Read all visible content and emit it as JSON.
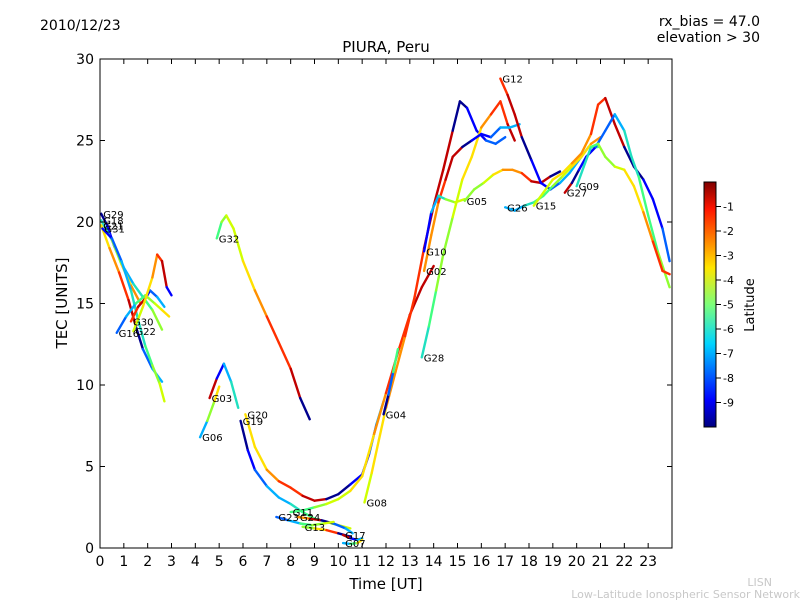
{
  "header": {
    "date": "2010/12/23",
    "rx_bias": "rx_bias = 47.0",
    "elevation": "elevation > 30"
  },
  "footer": {
    "line1": "LISN",
    "line2": "Low-Latitude Ionospheric Sensor Network"
  },
  "chart_data": {
    "type": "scatter",
    "title": "PIURA, Peru",
    "xlabel": "Time [UT]",
    "ylabel": "TEC [UNITS]",
    "xlim": [
      0,
      24
    ],
    "ylim": [
      0,
      30
    ],
    "xticks": [
      "0",
      "1",
      "2",
      "3",
      "4",
      "5",
      "6",
      "7",
      "8",
      "9",
      "10",
      "11",
      "12",
      "13",
      "14",
      "15",
      "16",
      "17",
      "18",
      "19",
      "20",
      "21",
      "22",
      "23"
    ],
    "yticks": [
      "0",
      "5",
      "10",
      "15",
      "20",
      "25",
      "30"
    ],
    "grid": false,
    "colorbar": {
      "label": "Latitude",
      "ticks": [
        "-1",
        "-2",
        "-3",
        "-4",
        "-5",
        "-6",
        "-7",
        "-8",
        "-9"
      ],
      "range": [
        -10,
        0
      ]
    },
    "series": [
      {
        "name": "G29",
        "points": [
          [
            0.05,
            20.5
          ],
          [
            0.3,
            19.8
          ],
          [
            0.6,
            18.5
          ],
          [
            1.0,
            17.2
          ],
          [
            1.4,
            16.2
          ],
          [
            1.8,
            15.4
          ],
          [
            2.2,
            14.6
          ],
          [
            2.6,
            13.4
          ]
        ]
      },
      {
        "name": "G18",
        "points": [
          [
            0.05,
            20.1
          ],
          [
            0.5,
            18.9
          ],
          [
            0.9,
            17.4
          ],
          [
            1.3,
            16.1
          ],
          [
            1.7,
            15.0
          ]
        ]
      },
      {
        "name": "G21",
        "points": [
          [
            0.05,
            19.8
          ],
          [
            0.4,
            18.4
          ],
          [
            0.8,
            16.9
          ],
          [
            1.2,
            15.2
          ],
          [
            1.5,
            13.6
          ],
          [
            1.8,
            12.2
          ],
          [
            2.2,
            11.0
          ],
          [
            2.6,
            10.2
          ]
        ]
      },
      {
        "name": "G31",
        "points": [
          [
            0.1,
            19.6
          ],
          [
            0.5,
            19.0
          ],
          [
            0.9,
            17.6
          ],
          [
            1.3,
            15.8
          ],
          [
            1.6,
            14.0
          ],
          [
            1.9,
            12.4
          ],
          [
            2.2,
            11.2
          ],
          [
            2.5,
            10.1
          ],
          [
            2.7,
            9.0
          ]
        ]
      },
      {
        "name": "G32",
        "points": [
          [
            4.9,
            19.0
          ],
          [
            5.1,
            20.0
          ],
          [
            5.3,
            20.4
          ],
          [
            5.6,
            19.6
          ],
          [
            6.0,
            17.6
          ],
          [
            6.5,
            15.8
          ],
          [
            7.0,
            14.2
          ],
          [
            7.5,
            12.6
          ],
          [
            8.0,
            11.0
          ],
          [
            8.4,
            9.2
          ],
          [
            8.8,
            7.9
          ]
        ]
      },
      {
        "name": "G30",
        "points": [
          [
            1.3,
            13.9
          ],
          [
            1.6,
            14.8
          ],
          [
            1.9,
            15.3
          ],
          [
            2.1,
            15.8
          ],
          [
            2.4,
            15.4
          ],
          [
            2.7,
            14.8
          ]
        ]
      },
      {
        "name": "G16",
        "points": [
          [
            0.7,
            13.2
          ],
          [
            1.1,
            14.2
          ],
          [
            1.5,
            15.0
          ],
          [
            1.9,
            15.5
          ],
          [
            2.3,
            15.0
          ],
          [
            2.6,
            14.6
          ],
          [
            2.9,
            14.2
          ]
        ]
      },
      {
        "name": "G22",
        "points": [
          [
            1.4,
            13.3
          ],
          [
            1.8,
            14.8
          ],
          [
            2.2,
            16.6
          ],
          [
            2.4,
            18.0
          ],
          [
            2.6,
            17.6
          ],
          [
            2.8,
            16.0
          ],
          [
            3.0,
            15.5
          ]
        ]
      },
      {
        "name": "G03",
        "points": [
          [
            4.6,
            9.2
          ],
          [
            4.9,
            10.4
          ],
          [
            5.2,
            11.3
          ],
          [
            5.5,
            10.2
          ],
          [
            5.8,
            8.6
          ]
        ]
      },
      {
        "name": "G06",
        "points": [
          [
            4.2,
            6.8
          ],
          [
            4.5,
            7.8
          ],
          [
            4.8,
            9.0
          ],
          [
            5.0,
            9.9
          ]
        ]
      },
      {
        "name": "G20",
        "points": [
          [
            6.1,
            8.2
          ],
          [
            6.5,
            6.2
          ],
          [
            7.0,
            4.8
          ],
          [
            7.5,
            4.1
          ],
          [
            8.0,
            3.7
          ],
          [
            8.5,
            3.2
          ],
          [
            9.0,
            2.9
          ],
          [
            9.5,
            3.0
          ],
          [
            10.0,
            3.3
          ],
          [
            10.5,
            3.9
          ],
          [
            11.0,
            4.5
          ],
          [
            11.3,
            5.8
          ],
          [
            11.6,
            7.6
          ],
          [
            11.9,
            9.0
          ]
        ]
      },
      {
        "name": "G19",
        "points": [
          [
            5.9,
            7.8
          ],
          [
            6.2,
            6.0
          ],
          [
            6.5,
            4.8
          ],
          [
            7.0,
            3.8
          ],
          [
            7.5,
            3.1
          ],
          [
            8.0,
            2.7
          ],
          [
            8.5,
            2.2
          ],
          [
            9.0,
            1.8
          ],
          [
            9.5,
            1.6
          ],
          [
            10.0,
            1.4
          ],
          [
            10.5,
            1.2
          ]
        ]
      },
      {
        "name": "G11",
        "points": [
          [
            8.0,
            2.2
          ],
          [
            8.5,
            2.3
          ],
          [
            9.0,
            2.5
          ],
          [
            9.5,
            2.7
          ],
          [
            10.0,
            3.0
          ],
          [
            10.5,
            3.5
          ],
          [
            11.0,
            4.4
          ],
          [
            11.5,
            7.0
          ],
          [
            12.0,
            9.5
          ],
          [
            12.5,
            12.0
          ],
          [
            13.0,
            14.3
          ],
          [
            13.5,
            16.0
          ],
          [
            14.0,
            17.3
          ]
        ]
      },
      {
        "name": "G24",
        "points": [
          [
            8.3,
            1.9
          ],
          [
            8.8,
            1.8
          ],
          [
            9.3,
            1.7
          ],
          [
            9.8,
            1.5
          ],
          [
            10.3,
            1.2
          ],
          [
            10.6,
            0.9
          ]
        ]
      },
      {
        "name": "G23",
        "points": [
          [
            7.4,
            1.9
          ],
          [
            7.9,
            1.7
          ],
          [
            8.4,
            1.5
          ],
          [
            8.9,
            1.4
          ],
          [
            9.4,
            1.5
          ],
          [
            9.8,
            1.6
          ]
        ]
      },
      {
        "name": "G13",
        "points": [
          [
            8.5,
            1.3
          ],
          [
            9.0,
            1.2
          ],
          [
            9.5,
            1.1
          ],
          [
            10.0,
            0.9
          ],
          [
            10.5,
            0.7
          ]
        ]
      },
      {
        "name": "G17",
        "points": [
          [
            10.2,
            0.8
          ],
          [
            10.5,
            0.6
          ],
          [
            10.8,
            0.5
          ],
          [
            11.0,
            0.6
          ]
        ]
      },
      {
        "name": "G07",
        "points": [
          [
            10.2,
            0.3
          ],
          [
            10.5,
            0.25
          ],
          [
            10.8,
            0.3
          ],
          [
            11.0,
            0.5
          ]
        ]
      },
      {
        "name": "G08",
        "points": [
          [
            11.1,
            2.8
          ],
          [
            11.4,
            4.6
          ],
          [
            11.7,
            6.6
          ],
          [
            12.0,
            8.6
          ],
          [
            12.4,
            10.8
          ],
          [
            12.8,
            13.0
          ],
          [
            13.2,
            15.4
          ],
          [
            13.6,
            18.4
          ],
          [
            14.0,
            21.0
          ],
          [
            14.4,
            23.2
          ],
          [
            14.8,
            25.6
          ],
          [
            15.1,
            27.4
          ],
          [
            15.4,
            27.0
          ],
          [
            15.8,
            25.6
          ],
          [
            16.2,
            25.0
          ],
          [
            16.6,
            24.8
          ],
          [
            17.0,
            25.2
          ]
        ]
      },
      {
        "name": "G04",
        "points": [
          [
            11.9,
            8.2
          ],
          [
            12.1,
            9.4
          ],
          [
            12.3,
            10.8
          ],
          [
            12.5,
            12.2
          ]
        ]
      },
      {
        "name": "G28",
        "points": [
          [
            13.5,
            11.7
          ],
          [
            13.8,
            13.6
          ],
          [
            14.1,
            15.8
          ],
          [
            14.4,
            18.0
          ],
          [
            14.8,
            20.3
          ],
          [
            15.2,
            22.6
          ],
          [
            15.6,
            24.0
          ],
          [
            16.0,
            25.8
          ],
          [
            16.4,
            26.6
          ],
          [
            16.8,
            27.4
          ],
          [
            17.1,
            26.0
          ],
          [
            17.4,
            25.0
          ]
        ]
      },
      {
        "name": "G02",
        "points": [
          [
            13.6,
            17.0
          ],
          [
            13.9,
            19.2
          ],
          [
            14.2,
            21.2
          ],
          [
            14.5,
            22.6
          ],
          [
            14.8,
            24.0
          ],
          [
            15.2,
            24.6
          ],
          [
            15.6,
            25.0
          ],
          [
            16.0,
            25.4
          ],
          [
            16.4,
            25.2
          ],
          [
            16.8,
            25.8
          ],
          [
            17.2,
            25.8
          ],
          [
            17.6,
            26.0
          ]
        ]
      },
      {
        "name": "G10",
        "points": [
          [
            13.6,
            18.2
          ],
          [
            13.9,
            20.6
          ],
          [
            14.2,
            21.6
          ],
          [
            14.5,
            21.4
          ],
          [
            14.9,
            21.2
          ],
          [
            15.3,
            21.4
          ]
        ]
      },
      {
        "name": "G05",
        "points": [
          [
            15.3,
            21.3
          ],
          [
            15.7,
            22.0
          ],
          [
            16.1,
            22.4
          ],
          [
            16.5,
            22.9
          ],
          [
            16.9,
            23.2
          ],
          [
            17.3,
            23.2
          ],
          [
            17.7,
            23.0
          ],
          [
            18.1,
            22.5
          ],
          [
            18.5,
            22.4
          ],
          [
            18.9,
            22.8
          ],
          [
            19.3,
            23.1
          ]
        ]
      },
      {
        "name": "G12",
        "points": [
          [
            16.8,
            28.8
          ],
          [
            17.1,
            27.8
          ],
          [
            17.4,
            26.6
          ],
          [
            17.7,
            25.2
          ],
          [
            18.1,
            23.8
          ],
          [
            18.5,
            22.4
          ],
          [
            18.9,
            22.0
          ],
          [
            19.3,
            22.4
          ],
          [
            19.7,
            23.0
          ],
          [
            20.1,
            23.8
          ],
          [
            20.5,
            24.6
          ],
          [
            20.9,
            24.6
          ]
        ]
      },
      {
        "name": "G26",
        "points": [
          [
            17.0,
            20.9
          ],
          [
            17.4,
            20.7
          ],
          [
            17.8,
            21.0
          ],
          [
            18.2,
            21.2
          ],
          [
            18.6,
            21.6
          ],
          [
            19.0,
            22.2
          ],
          [
            19.4,
            22.8
          ],
          [
            19.8,
            23.4
          ],
          [
            20.2,
            24.0
          ],
          [
            20.6,
            24.8
          ],
          [
            21.0,
            25.2
          ]
        ]
      },
      {
        "name": "G15",
        "points": [
          [
            18.2,
            21.0
          ],
          [
            18.6,
            21.8
          ],
          [
            19.0,
            22.6
          ],
          [
            19.4,
            23.0
          ],
          [
            19.8,
            23.6
          ],
          [
            20.2,
            24.2
          ],
          [
            20.6,
            25.4
          ],
          [
            20.9,
            27.2
          ],
          [
            21.2,
            27.6
          ],
          [
            21.6,
            26.0
          ],
          [
            22.0,
            24.6
          ],
          [
            22.4,
            23.4
          ],
          [
            22.8,
            22.6
          ],
          [
            23.2,
            21.4
          ],
          [
            23.6,
            19.6
          ],
          [
            23.9,
            17.6
          ]
        ]
      },
      {
        "name": "G27",
        "points": [
          [
            19.5,
            21.8
          ],
          [
            19.8,
            22.4
          ],
          [
            20.1,
            23.2
          ],
          [
            20.4,
            24.0
          ],
          [
            20.8,
            24.6
          ],
          [
            21.2,
            25.6
          ],
          [
            21.6,
            26.6
          ],
          [
            22.0,
            25.6
          ],
          [
            22.3,
            24.0
          ],
          [
            22.6,
            22.8
          ],
          [
            23.0,
            20.4
          ],
          [
            23.4,
            18.2
          ],
          [
            23.9,
            16.0
          ]
        ]
      },
      {
        "name": "G09",
        "points": [
          [
            20.0,
            22.2
          ],
          [
            20.3,
            23.4
          ],
          [
            20.6,
            24.6
          ],
          [
            20.9,
            24.8
          ],
          [
            21.2,
            24.0
          ],
          [
            21.6,
            23.4
          ],
          [
            22.0,
            23.2
          ],
          [
            22.4,
            22.2
          ],
          [
            22.8,
            20.6
          ],
          [
            23.2,
            18.8
          ],
          [
            23.6,
            17.0
          ],
          [
            23.9,
            16.8
          ]
        ]
      }
    ]
  }
}
